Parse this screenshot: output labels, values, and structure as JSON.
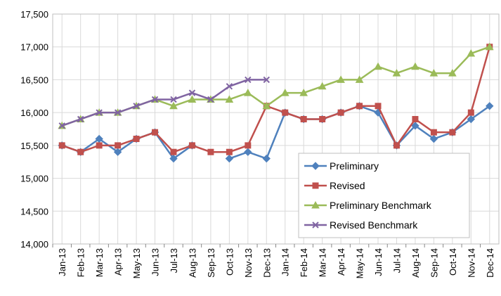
{
  "chart_data": {
    "type": "line",
    "categories": [
      "Jan-13",
      "Feb-13",
      "Mar-13",
      "Apr-13",
      "May-13",
      "Jun-13",
      "Jul-13",
      "Aug-13",
      "Sep-13",
      "Oct-13",
      "Nov-13",
      "Dec-13",
      "Jan-14",
      "Feb-14",
      "Mar-14",
      "Apr-14",
      "May-14",
      "Jun-14",
      "Jul-14",
      "Aug-14",
      "Sep-14",
      "Oct-14",
      "Nov-14",
      "Dec-14"
    ],
    "series": [
      {
        "name": "Preliminary",
        "color": "#4f81bd",
        "marker": "diamond",
        "values": [
          15500,
          15400,
          15600,
          15400,
          15600,
          15700,
          15300,
          15500,
          null,
          15300,
          15400,
          15300,
          16000,
          15900,
          15900,
          16000,
          16100,
          16000,
          15500,
          15800,
          15600,
          15700,
          15900,
          16100
        ]
      },
      {
        "name": "Revised",
        "color": "#c0504d",
        "marker": "square",
        "values": [
          15500,
          15400,
          15500,
          15500,
          15600,
          15700,
          15400,
          15500,
          15400,
          15400,
          15500,
          16100,
          16000,
          15900,
          15900,
          16000,
          16100,
          16100,
          15500,
          15900,
          15700,
          15700,
          16000,
          17000
        ]
      },
      {
        "name": "Preliminary Benchmark",
        "color": "#9bbb59",
        "marker": "triangle",
        "values": [
          15800,
          15900,
          16000,
          16000,
          16100,
          16200,
          16100,
          16200,
          16200,
          16200,
          16300,
          16100,
          16300,
          16300,
          16400,
          16500,
          16500,
          16700,
          16600,
          16700,
          16600,
          16600,
          16900,
          17000
        ]
      },
      {
        "name": "Revised Benchmark",
        "color": "#8064a2",
        "marker": "x",
        "values": [
          15800,
          15900,
          16000,
          16000,
          16100,
          16200,
          16200,
          16300,
          16200,
          16400,
          16500,
          16500,
          null,
          null,
          null,
          null,
          null,
          null,
          null,
          null,
          null,
          null,
          null,
          null
        ]
      }
    ],
    "ylim": [
      14000,
      17500
    ],
    "yticks": [
      {
        "value": 14000,
        "label": "14,000"
      },
      {
        "value": 14500,
        "label": "14,500"
      },
      {
        "value": 15000,
        "label": "15,000"
      },
      {
        "value": 15500,
        "label": "15,500"
      },
      {
        "value": 16000,
        "label": "16,000"
      },
      {
        "value": 16500,
        "label": "16,500"
      },
      {
        "value": 17000,
        "label": "17,000"
      },
      {
        "value": 17500,
        "label": "17,500"
      }
    ],
    "grid": true,
    "legend": "lower right"
  }
}
